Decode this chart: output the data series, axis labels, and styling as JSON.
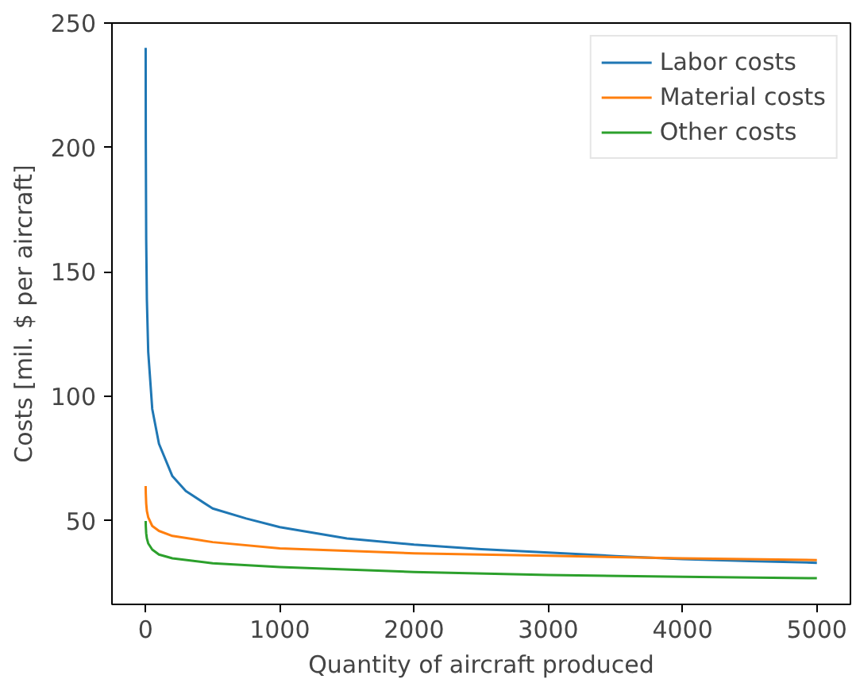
{
  "chart_data": {
    "type": "line",
    "xlabel": "Quantity of aircraft produced",
    "ylabel": "Costs [mil. $ per aircraft]",
    "xlim": [
      -250,
      5250
    ],
    "ylim": [
      16.5,
      250
    ],
    "xticks": [
      0,
      1000,
      2000,
      3000,
      4000,
      5000
    ],
    "yticks": [
      50,
      100,
      150,
      200,
      250
    ],
    "grid": false,
    "legend": "top right",
    "marker": "none",
    "line_style": "solid",
    "series": [
      {
        "name": "Labor costs",
        "color": "#1f77b4",
        "x": [
          1,
          2,
          5,
          10,
          20,
          50,
          100,
          200,
          300,
          500,
          750,
          1000,
          1500,
          2000,
          2500,
          3000,
          3500,
          4000,
          4500,
          5000
        ],
        "values": [
          240,
          203,
          163,
          139,
          118,
          95,
          81,
          68,
          62,
          55,
          51,
          47.5,
          43,
          40.5,
          38.7,
          37.3,
          35.9,
          34.7,
          33.9,
          33.2
        ]
      },
      {
        "name": "Material costs",
        "color": "#ff7f0e",
        "x": [
          1,
          2,
          5,
          10,
          20,
          50,
          100,
          200,
          500,
          1000,
          2000,
          3000,
          4000,
          5000
        ],
        "values": [
          64,
          61,
          57,
          54,
          51.5,
          48,
          46,
          44,
          41.5,
          39,
          37,
          36,
          35,
          34.3
        ]
      },
      {
        "name": "Other costs",
        "color": "#2ca02c",
        "x": [
          1,
          2,
          5,
          10,
          20,
          50,
          100,
          200,
          500,
          1000,
          2000,
          3000,
          4000,
          5000
        ],
        "values": [
          50,
          48,
          45,
          43,
          41,
          38.5,
          36.5,
          35,
          33,
          31.5,
          29.5,
          28.3,
          27.6,
          27
        ]
      }
    ]
  }
}
